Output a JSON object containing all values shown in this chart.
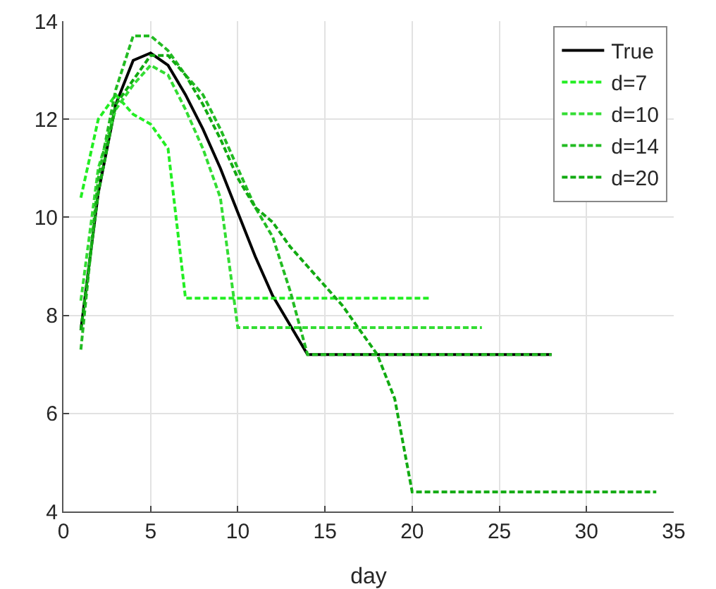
{
  "chart_data": {
    "type": "line",
    "xlabel": "day",
    "xlim": [
      0,
      35
    ],
    "xticks": [
      0,
      5,
      10,
      15,
      20,
      25,
      30,
      35
    ],
    "ylim": [
      4,
      14
    ],
    "yticks": [
      4,
      6,
      8,
      10,
      12,
      14
    ],
    "grid": true,
    "legend": "top right",
    "marker": "none",
    "series": [
      {
        "name": "True",
        "color": "#000000",
        "line_style": "solid",
        "x": [
          1,
          2,
          3,
          4,
          5,
          6,
          7,
          8,
          9,
          10,
          11,
          12,
          13,
          14,
          28
        ],
        "values": [
          7.7,
          10.5,
          12.3,
          13.2,
          13.35,
          13.1,
          12.5,
          11.8,
          11.0,
          10.1,
          9.2,
          8.4,
          7.8,
          7.2,
          7.2
        ]
      },
      {
        "name": "d=7",
        "color": "#22ee22",
        "line_style": "dashed",
        "x": [
          1,
          2,
          3,
          4,
          5,
          6,
          7,
          21
        ],
        "values": [
          10.4,
          12.0,
          12.5,
          12.1,
          11.9,
          11.4,
          8.35,
          8.35
        ]
      },
      {
        "name": "d=10",
        "color": "#33dd33",
        "line_style": "dashed",
        "x": [
          1,
          2,
          3,
          4,
          5,
          6,
          7,
          8,
          9,
          10,
          24
        ],
        "values": [
          8.3,
          11.0,
          12.2,
          12.7,
          13.1,
          12.9,
          12.2,
          11.4,
          10.4,
          7.75,
          7.75
        ]
      },
      {
        "name": "d=14",
        "color": "#22bb22",
        "line_style": "dashed",
        "x": [
          1,
          2,
          3,
          4,
          5,
          6,
          7,
          8,
          9,
          10,
          11,
          12,
          13,
          14,
          28
        ],
        "values": [
          7.3,
          10.8,
          12.6,
          13.7,
          13.7,
          13.4,
          12.9,
          12.5,
          11.8,
          11.0,
          10.2,
          9.6,
          8.5,
          7.2,
          7.2
        ]
      },
      {
        "name": "d=20",
        "color": "#11aa11",
        "line_style": "dashed",
        "x": [
          1,
          2,
          3,
          4,
          5,
          6,
          7,
          8,
          9,
          10,
          11,
          12,
          13,
          14,
          15,
          16,
          17,
          18,
          19,
          20,
          34
        ],
        "values": [
          7.7,
          10.5,
          12.3,
          12.8,
          13.3,
          13.3,
          12.9,
          12.3,
          11.6,
          10.8,
          10.2,
          9.9,
          9.4,
          9.0,
          8.6,
          8.2,
          7.7,
          7.2,
          6.3,
          4.4,
          4.4
        ]
      }
    ]
  }
}
